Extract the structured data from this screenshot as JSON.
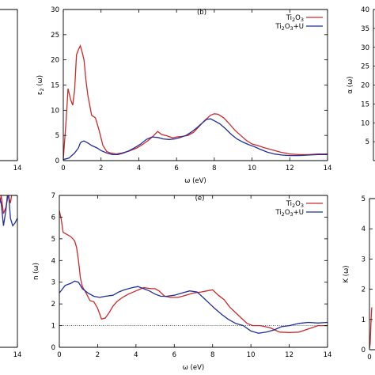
{
  "chart_data": [
    {
      "panel": "top-left",
      "type": "line",
      "partial": true,
      "xlim": [
        0,
        14
      ],
      "x_ticks": [
        {
          "v": 14,
          "label": "14"
        }
      ],
      "legend_position": "top-right",
      "series": [
        {
          "color": "#cc2a2a",
          "x": [
            9,
            10,
            11,
            12,
            13,
            14
          ],
          "y": [
            4.2,
            4.2,
            4.3,
            4.2,
            4.3,
            4.2
          ]
        },
        {
          "color": "#1f2f9f",
          "x": [
            9,
            10,
            11,
            12,
            13,
            14
          ],
          "y": [
            4.0,
            4.0,
            4.1,
            4.0,
            4.1,
            4.1
          ]
        }
      ]
    },
    {
      "panel": "top-middle",
      "type": "line",
      "tag": "(b)",
      "xlabel": "ω (eV)",
      "ylabel": "ε",
      "ylabel_sub": "2",
      "ylabel_rest": " (ω)",
      "xlim": [
        0,
        14
      ],
      "ylim": [
        0,
        30
      ],
      "x_ticks": [
        0,
        2,
        4,
        6,
        8,
        10,
        12,
        14
      ],
      "y_ticks": [
        0,
        5,
        10,
        15,
        20,
        25,
        30
      ],
      "legend_position": "top-right",
      "series": [
        {
          "name": "Ti2O3",
          "name_main": "Ti",
          "name_sub1": "2",
          "name_mid": "O",
          "name_sub2": "3",
          "name_tail": "",
          "color": "#cc2a2a",
          "x": [
            0,
            0.15,
            0.25,
            0.4,
            0.5,
            0.6,
            0.7,
            0.8,
            0.9,
            1.0,
            1.1,
            1.2,
            1.3,
            1.5,
            1.7,
            1.9,
            2.1,
            2.3,
            2.5,
            2.8,
            3.1,
            3.5,
            3.9,
            4.2,
            4.5,
            4.8,
            5.0,
            5.2,
            5.5,
            5.8,
            6.0,
            6.3,
            6.6,
            6.9,
            7.2,
            7.5,
            7.8,
            8.0,
            8.2,
            8.5,
            8.8,
            9.1,
            9.4,
            9.7,
            10.0,
            10.3,
            10.6,
            11.0,
            11.5,
            12.0,
            12.5,
            13.0,
            13.5,
            14.0
          ],
          "y": [
            0.3,
            8,
            14.3,
            12,
            11,
            14,
            21,
            22,
            22.8,
            21.5,
            20,
            16,
            13,
            9,
            8.5,
            6,
            3,
            1.8,
            1.5,
            1.3,
            1.5,
            1.9,
            2.5,
            3.2,
            4.0,
            5.0,
            5.8,
            5.2,
            4.9,
            4.5,
            4.7,
            4.8,
            5.0,
            5.6,
            6.8,
            8.0,
            9.0,
            9.3,
            9.2,
            8.5,
            7.3,
            6.0,
            5.0,
            4.0,
            3.3,
            3.0,
            2.6,
            2.2,
            1.7,
            1.3,
            1.2,
            1.2,
            1.3,
            1.3
          ]
        },
        {
          "name": "Ti2O3+U",
          "name_main": "Ti",
          "name_sub1": "2",
          "name_mid": "O",
          "name_sub2": "3",
          "name_tail": "+U",
          "color": "#1f2f9f",
          "x": [
            0,
            0.3,
            0.6,
            0.8,
            0.9,
            1.0,
            1.1,
            1.3,
            1.5,
            1.8,
            2.0,
            2.3,
            2.6,
            2.9,
            3.2,
            3.5,
            3.8,
            4.1,
            4.4,
            4.7,
            5.0,
            5.3,
            5.6,
            5.9,
            6.2,
            6.5,
            6.8,
            7.1,
            7.4,
            7.6,
            7.8,
            8.0,
            8.3,
            8.6,
            8.9,
            9.2,
            9.5,
            9.8,
            10.1,
            10.4,
            10.8,
            11.2,
            11.6,
            12.0,
            12.5,
            13.0,
            13.5,
            14.0
          ],
          "y": [
            0.2,
            0.5,
            1.5,
            2.5,
            3.5,
            3.8,
            3.9,
            3.5,
            3.0,
            2.5,
            2.0,
            1.5,
            1.2,
            1.2,
            1.5,
            2.0,
            2.6,
            3.3,
            4.2,
            4.7,
            4.6,
            4.3,
            4.2,
            4.3,
            4.6,
            5.0,
            5.7,
            6.6,
            7.6,
            8.2,
            8.3,
            7.9,
            7.3,
            6.3,
            5.2,
            4.3,
            3.7,
            3.2,
            2.8,
            2.3,
            1.7,
            1.3,
            1.1,
            1.0,
            1.0,
            1.1,
            1.2,
            1.2
          ]
        }
      ]
    },
    {
      "panel": "top-right",
      "type": "line",
      "partial": true,
      "ylabel": "α (ω)",
      "ylim": [
        0,
        40
      ],
      "y_ticks": [
        {
          "v": 5,
          "label": "5"
        },
        {
          "v": 10,
          "label": "10"
        },
        {
          "v": 15,
          "label": "15"
        },
        {
          "v": 20,
          "label": "20"
        },
        {
          "v": 25,
          "label": "25"
        },
        {
          "v": 30,
          "label": "30"
        },
        {
          "v": 35,
          "label": "35"
        },
        {
          "v": 40,
          "label": "40"
        }
      ]
    },
    {
      "panel": "bottom-left",
      "type": "line",
      "partial": true,
      "xlim": [
        0,
        14
      ],
      "x_ticks": [
        {
          "v": 14,
          "label": "14"
        }
      ],
      "series": [
        {
          "color": "#cc2a2a",
          "x": [
            9,
            9.5,
            10,
            10.5,
            11,
            11.5,
            12,
            12.5,
            13,
            13.5,
            14
          ],
          "y": [
            0.95,
            0.9,
            0.92,
            1.0,
            0.88,
            0.92,
            1.0,
            0.95,
            1.05,
            1.0,
            1.0
          ]
        },
        {
          "color": "#1f2f9f",
          "x": [
            9,
            9.5,
            10,
            10.5,
            11,
            11.5,
            12,
            12.5,
            13,
            13.5,
            14
          ],
          "y": [
            0.85,
            0.9,
            1.0,
            0.95,
            0.8,
            0.9,
            1.05,
            0.85,
            0.8,
            0.82,
            0.85
          ]
        }
      ]
    },
    {
      "panel": "bottom-middle",
      "type": "line",
      "tag": "(e)",
      "xlabel": "ω (eV)",
      "ylabel": "n (ω)",
      "xlim": [
        0,
        14
      ],
      "ylim": [
        0,
        7
      ],
      "x_ticks": [
        0,
        2,
        4,
        6,
        8,
        10,
        12,
        14
      ],
      "y_ticks": [
        0,
        1,
        2,
        3,
        4,
        5,
        6,
        7
      ],
      "reference_line": {
        "y": 1,
        "style": "dotted"
      },
      "legend_position": "top-right",
      "series": [
        {
          "name": "Ti2O3",
          "name_main": "Ti",
          "name_sub1": "2",
          "name_mid": "O",
          "name_sub2": "3",
          "name_tail": "",
          "color": "#cc2a2a",
          "x": [
            0,
            0.1,
            0.2,
            0.4,
            0.6,
            0.8,
            0.9,
            1.0,
            1.1,
            1.2,
            1.4,
            1.6,
            1.8,
            2.0,
            2.2,
            2.4,
            2.6,
            2.8,
            3.0,
            3.3,
            3.6,
            4.0,
            4.4,
            4.8,
            5.0,
            5.2,
            5.5,
            5.8,
            6.2,
            6.6,
            7.0,
            7.4,
            7.7,
            8.0,
            8.3,
            8.6,
            8.9,
            9.2,
            9.5,
            9.8,
            10.1,
            10.5,
            11.0,
            11.5,
            12.0,
            12.5,
            13.0,
            13.5,
            14.0
          ],
          "y": [
            6.3,
            5.9,
            5.3,
            5.2,
            5.1,
            4.9,
            4.6,
            4.0,
            3.2,
            2.8,
            2.5,
            2.15,
            2.1,
            1.8,
            1.3,
            1.35,
            1.6,
            1.9,
            2.1,
            2.3,
            2.45,
            2.6,
            2.75,
            2.7,
            2.7,
            2.6,
            2.35,
            2.3,
            2.3,
            2.4,
            2.5,
            2.55,
            2.6,
            2.65,
            2.4,
            2.2,
            1.85,
            1.6,
            1.35,
            1.1,
            1.0,
            1.0,
            0.9,
            0.7,
            0.68,
            0.7,
            0.85,
            1.0,
            1.0
          ]
        },
        {
          "name": "Ti2O3+U",
          "name_main": "Ti",
          "name_sub1": "2",
          "name_mid": "O",
          "name_sub2": "3",
          "name_tail": "+U",
          "color": "#1f2f9f",
          "x": [
            0,
            0.3,
            0.6,
            0.8,
            1.0,
            1.2,
            1.5,
            1.8,
            2.1,
            2.4,
            2.8,
            3.1,
            3.4,
            3.8,
            4.1,
            4.4,
            4.7,
            5.0,
            5.3,
            5.6,
            6.0,
            6.4,
            6.8,
            7.2,
            7.5,
            7.8,
            8.1,
            8.5,
            8.8,
            9.2,
            9.6,
            10.0,
            10.4,
            10.8,
            11.2,
            11.6,
            12.0,
            12.5,
            13.0,
            13.5,
            14.0
          ],
          "y": [
            2.5,
            2.85,
            2.95,
            3.05,
            3.0,
            2.7,
            2.5,
            2.35,
            2.3,
            2.35,
            2.4,
            2.55,
            2.65,
            2.75,
            2.8,
            2.7,
            2.6,
            2.45,
            2.35,
            2.35,
            2.4,
            2.5,
            2.6,
            2.55,
            2.3,
            2.05,
            1.8,
            1.5,
            1.3,
            1.1,
            1.0,
            0.75,
            0.65,
            0.7,
            0.8,
            0.95,
            1.0,
            1.1,
            1.15,
            1.12,
            1.15
          ]
        }
      ]
    },
    {
      "panel": "bottom-right",
      "type": "line",
      "partial": true,
      "ylabel": "K (ω)",
      "ylim": [
        0,
        5
      ],
      "y_ticks": [
        {
          "v": 0,
          "label": "0"
        },
        {
          "v": 1,
          "label": "1"
        },
        {
          "v": 2,
          "label": "2"
        },
        {
          "v": 3,
          "label": "3"
        },
        {
          "v": 4,
          "label": "4"
        },
        {
          "v": 5,
          "label": "5"
        }
      ],
      "x_ticks": [
        {
          "v": 0,
          "label": "0"
        }
      ],
      "series": [
        {
          "color": "#cc2a2a",
          "x": [
            0,
            0.1,
            0.2,
            0.3
          ],
          "y": [
            0.05,
            0.2,
            0.9,
            1.4
          ]
        }
      ]
    }
  ]
}
